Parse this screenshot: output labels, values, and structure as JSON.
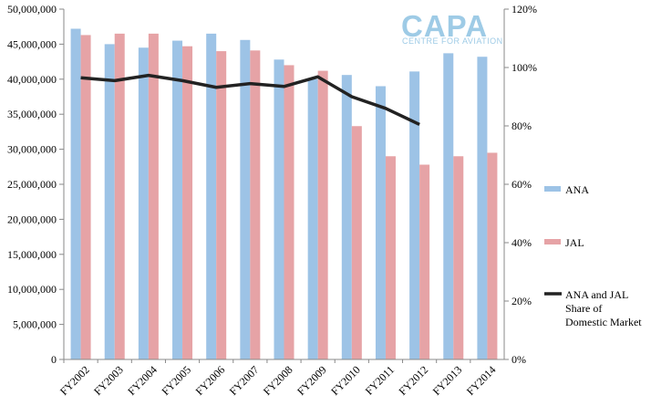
{
  "chart_data": {
    "type": "bar",
    "categories": [
      "FY2002",
      "FY2003",
      "FY2004",
      "FY2005",
      "FY2006",
      "FY2007",
      "FY2008",
      "FY2009",
      "FY2010",
      "FY2011",
      "FY2012",
      "FY2013",
      "FY2014"
    ],
    "series": [
      {
        "name": "ANA",
        "axis": "left",
        "kind": "bar",
        "color": "#9dc3e6",
        "values": [
          47200000,
          45000000,
          44500000,
          45500000,
          46500000,
          45600000,
          42800000,
          40000000,
          40600000,
          39000000,
          41100000,
          43700000,
          43200000
        ]
      },
      {
        "name": "JAL",
        "axis": "left",
        "kind": "bar",
        "color": "#e6a3a6",
        "values": [
          46300000,
          46500000,
          46500000,
          44700000,
          44000000,
          44100000,
          42000000,
          41200000,
          33300000,
          29000000,
          27800000,
          29000000,
          29500000
        ]
      },
      {
        "name": "ANA and JAL Share of Domestic Market",
        "axis": "right",
        "kind": "line",
        "color": "#222222",
        "values": [
          96.5,
          95.5,
          97.3,
          95.5,
          93.2,
          94.5,
          93.5,
          96.8,
          90.0,
          86.0,
          80.5,
          null,
          null
        ]
      }
    ],
    "y_left": {
      "min": 0,
      "max": 50000000,
      "step": 5000000,
      "tick_labels": [
        "0",
        "5,000,000",
        "10,000,000",
        "15,000,000",
        "20,000,000",
        "25,000,000",
        "30,000,000",
        "35,000,000",
        "40,000,000",
        "45,000,000",
        "50,000,000"
      ]
    },
    "y_right": {
      "min": 0,
      "max": 120,
      "step": 20,
      "tick_labels": [
        "0%",
        "20%",
        "40%",
        "60%",
        "80%",
        "100%",
        "120%"
      ]
    },
    "legend": {
      "placement": "right",
      "items": [
        {
          "label_lines": [
            "ANA"
          ],
          "swatch": "bar",
          "color": "#9dc3e6"
        },
        {
          "label_lines": [
            "JAL"
          ],
          "swatch": "bar",
          "color": "#e6a3a6"
        },
        {
          "label_lines": [
            "ANA and JAL",
            "Share of",
            "Domestic Market"
          ],
          "swatch": "line",
          "color": "#222222"
        }
      ]
    },
    "grid": false,
    "logo": {
      "main": "CAPA",
      "sub": "CENTRE FOR AVIATION",
      "color": "#9ecbe6"
    }
  }
}
